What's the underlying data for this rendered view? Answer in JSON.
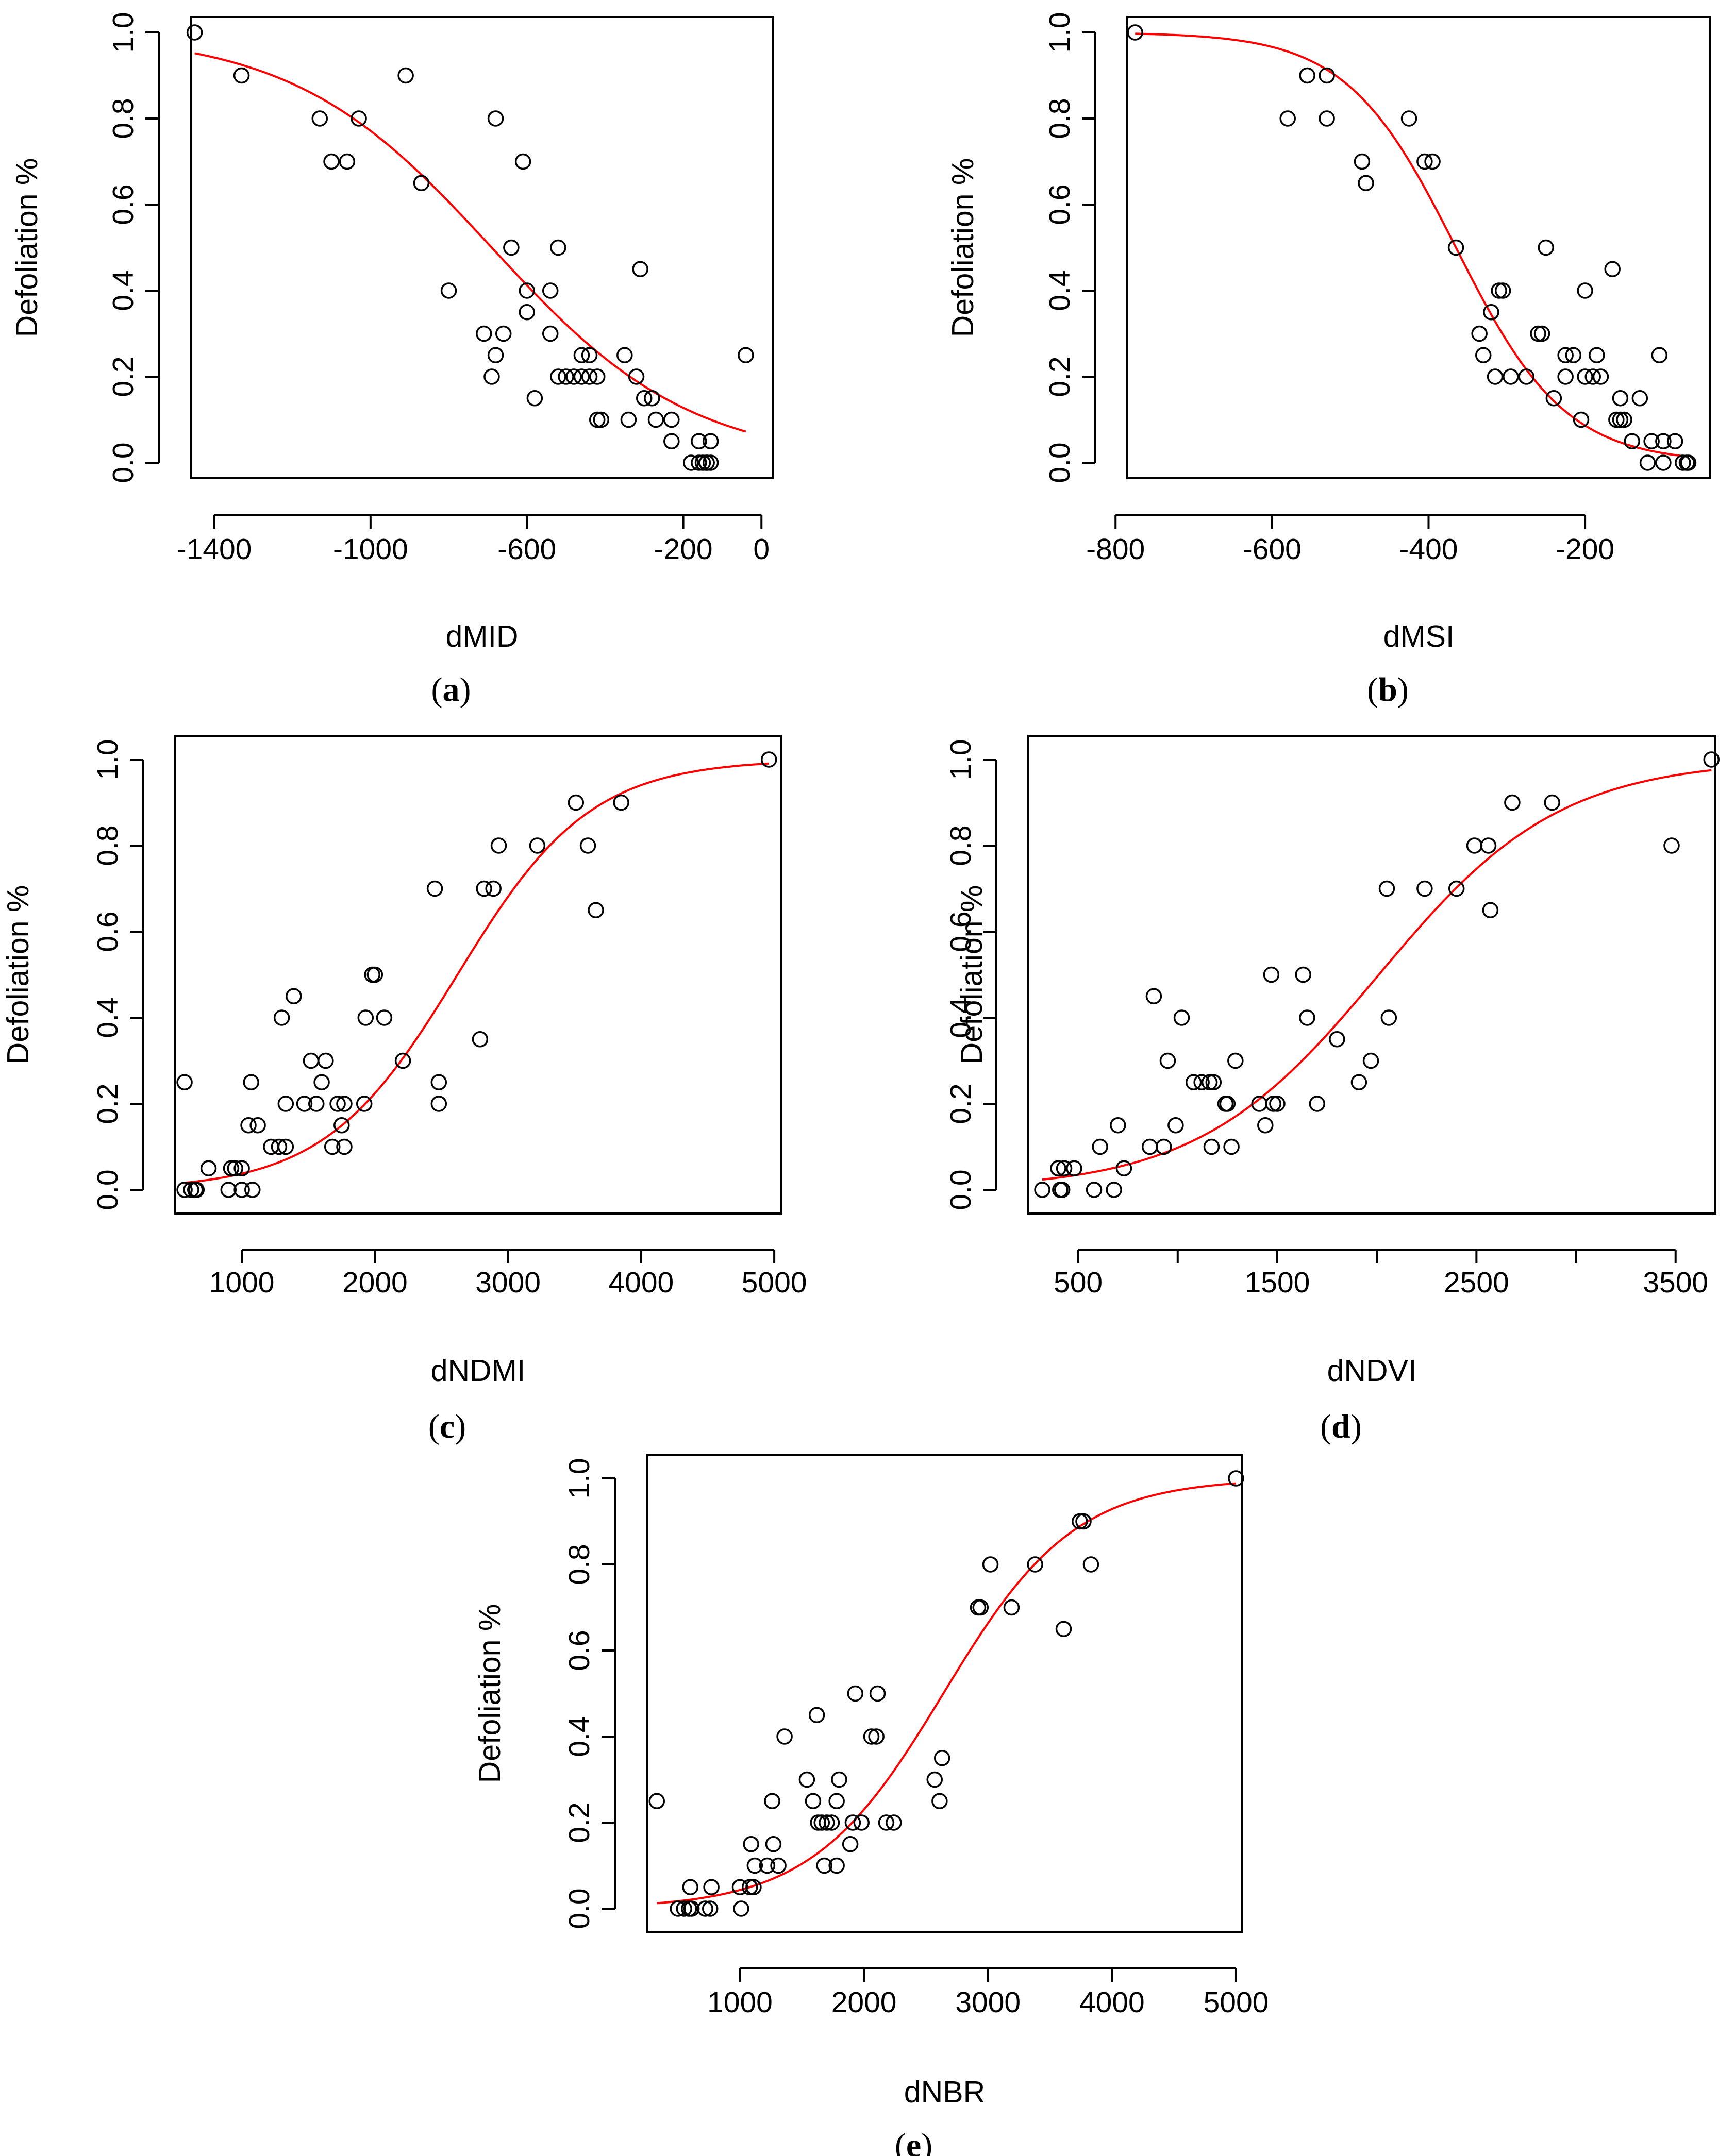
{
  "chart_data": [
    {
      "id": "a",
      "type": "scatter",
      "caption_letter": "a",
      "xlabel": "dMID",
      "ylabel": "Defoliation %",
      "xlim": [
        -1460,
        30
      ],
      "ylim": [
        0,
        1
      ],
      "xticks": [
        -1400,
        -1000,
        -600,
        -200,
        0
      ],
      "xtick_labels": [
        "-1400",
        "-1000",
        "-600",
        "-200",
        "0"
      ],
      "yticks": [
        0,
        0.2,
        0.4,
        0.6,
        0.8,
        1.0
      ],
      "ytick_labels": [
        "0.0",
        "0.2",
        "0.4",
        "0.6",
        "0.8",
        "1.0"
      ],
      "curve": {
        "type": "logistic",
        "x_mid": -690,
        "scale": 255,
        "color": "#ff0000"
      },
      "points": [
        [
          -1450,
          1.0
        ],
        [
          -1330,
          0.9
        ],
        [
          -1130,
          0.8
        ],
        [
          -1100,
          0.7
        ],
        [
          -1060,
          0.7
        ],
        [
          -1030,
          0.8
        ],
        [
          -910,
          0.9
        ],
        [
          -870,
          0.65
        ],
        [
          -800,
          0.4
        ],
        [
          -710,
          0.3
        ],
        [
          -690,
          0.2
        ],
        [
          -680,
          0.8
        ],
        [
          -680,
          0.25
        ],
        [
          -660,
          0.3
        ],
        [
          -640,
          0.5
        ],
        [
          -610,
          0.7
        ],
        [
          -600,
          0.4
        ],
        [
          -600,
          0.35
        ],
        [
          -580,
          0.15
        ],
        [
          -540,
          0.3
        ],
        [
          -540,
          0.4
        ],
        [
          -520,
          0.5
        ],
        [
          -520,
          0.2
        ],
        [
          -500,
          0.2
        ],
        [
          -480,
          0.2
        ],
        [
          -460,
          0.25
        ],
        [
          -460,
          0.2
        ],
        [
          -440,
          0.25
        ],
        [
          -440,
          0.2
        ],
        [
          -420,
          0.1
        ],
        [
          -420,
          0.2
        ],
        [
          -410,
          0.1
        ],
        [
          -340,
          0.1
        ],
        [
          -350,
          0.25
        ],
        [
          -320,
          0.2
        ],
        [
          -310,
          0.45
        ],
        [
          -300,
          0.15
        ],
        [
          -280,
          0.15
        ],
        [
          -270,
          0.1
        ],
        [
          -230,
          0.1
        ],
        [
          -230,
          0.05
        ],
        [
          -180,
          0
        ],
        [
          -160,
          0.05
        ],
        [
          -160,
          0
        ],
        [
          -150,
          0
        ],
        [
          -140,
          0
        ],
        [
          -130,
          0.05
        ],
        [
          -140,
          0
        ],
        [
          -130,
          0
        ],
        [
          -40,
          0.25
        ]
      ]
    },
    {
      "id": "b",
      "type": "scatter",
      "caption_letter": "b",
      "xlabel": "dMSI",
      "ylabel": "Defoliation %",
      "xlim": [
        -785,
        -40
      ],
      "ylim": [
        0,
        1
      ],
      "xticks": [
        -800,
        -600,
        -400,
        -200
      ],
      "xtick_labels": [
        "-800",
        "-600",
        "-400",
        "-200"
      ],
      "yticks": [
        0,
        0.2,
        0.4,
        0.6,
        0.8,
        1.0
      ],
      "ytick_labels": [
        "0.0",
        "0.2",
        "0.4",
        "0.6",
        "0.8",
        "1.0"
      ],
      "curve": {
        "type": "logistic",
        "x_mid": -365,
        "scale": 70,
        "color": "#ff0000"
      },
      "points": [
        [
          -775,
          1.0
        ],
        [
          -580,
          0.8
        ],
        [
          -555,
          0.9
        ],
        [
          -530,
          0.9
        ],
        [
          -530,
          0.8
        ],
        [
          -485,
          0.7
        ],
        [
          -480,
          0.65
        ],
        [
          -425,
          0.8
        ],
        [
          -405,
          0.7
        ],
        [
          -395,
          0.7
        ],
        [
          -365,
          0.5
        ],
        [
          -335,
          0.3
        ],
        [
          -330,
          0.25
        ],
        [
          -320,
          0.35
        ],
        [
          -315,
          0.2
        ],
        [
          -310,
          0.4
        ],
        [
          -305,
          0.4
        ],
        [
          -295,
          0.2
        ],
        [
          -275,
          0.2
        ],
        [
          -260,
          0.3
        ],
        [
          -255,
          0.3
        ],
        [
          -250,
          0.5
        ],
        [
          -240,
          0.15
        ],
        [
          -225,
          0.2
        ],
        [
          -225,
          0.25
        ],
        [
          -215,
          0.25
        ],
        [
          -205,
          0.1
        ],
        [
          -200,
          0.4
        ],
        [
          -200,
          0.2
        ],
        [
          -190,
          0.2
        ],
        [
          -185,
          0.25
        ],
        [
          -180,
          0.2
        ],
        [
          -165,
          0.45
        ],
        [
          -160,
          0.1
        ],
        [
          -155,
          0.15
        ],
        [
          -155,
          0.1
        ],
        [
          -150,
          0.1
        ],
        [
          -140,
          0.05
        ],
        [
          -130,
          0.15
        ],
        [
          -120,
          0
        ],
        [
          -115,
          0.05
        ],
        [
          -105,
          0.25
        ],
        [
          -100,
          0.05
        ],
        [
          -100,
          0
        ],
        [
          -85,
          0.05
        ],
        [
          -75,
          0
        ],
        [
          -70,
          0
        ],
        [
          -68,
          0
        ]
      ]
    },
    {
      "id": "c",
      "type": "scatter",
      "caption_letter": "c",
      "xlabel": "dNDMI",
      "ylabel": "Defoliation %",
      "xlim": [
        500,
        5050
      ],
      "ylim": [
        0,
        1
      ],
      "xticks": [
        1000,
        2000,
        3000,
        4000,
        5000
      ],
      "xtick_labels": [
        "1000",
        "2000",
        "3000",
        "4000",
        "5000"
      ],
      "yticks": [
        0,
        0.2,
        0.4,
        0.6,
        0.8,
        1.0
      ],
      "ytick_labels": [
        "0.0",
        "0.2",
        "0.4",
        "0.6",
        "0.8",
        "1.0"
      ],
      "curve": {
        "type": "logistic",
        "x_mid": 2620,
        "scale": 500,
        "color": "#ff0000"
      },
      "points": [
        [
          570,
          0.25
        ],
        [
          570,
          0
        ],
        [
          620,
          0
        ],
        [
          650,
          0
        ],
        [
          660,
          0
        ],
        [
          750,
          0.05
        ],
        [
          900,
          0
        ],
        [
          920,
          0.05
        ],
        [
          950,
          0.05
        ],
        [
          1000,
          0.05
        ],
        [
          1000,
          0
        ],
        [
          1050,
          0.15
        ],
        [
          1070,
          0.25
        ],
        [
          1080,
          0
        ],
        [
          1120,
          0.15
        ],
        [
          1220,
          0.1
        ],
        [
          1280,
          0.1
        ],
        [
          1300,
          0.4
        ],
        [
          1330,
          0.1
        ],
        [
          1330,
          0.2
        ],
        [
          1390,
          0.45
        ],
        [
          1470,
          0.2
        ],
        [
          1520,
          0.3
        ],
        [
          1560,
          0.2
        ],
        [
          1600,
          0.25
        ],
        [
          1630,
          0.3
        ],
        [
          1680,
          0.1
        ],
        [
          1720,
          0.2
        ],
        [
          1750,
          0.15
        ],
        [
          1770,
          0.2
        ],
        [
          1770,
          0.1
        ],
        [
          1920,
          0.2
        ],
        [
          1930,
          0.4
        ],
        [
          1980,
          0.5
        ],
        [
          2000,
          0.5
        ],
        [
          2070,
          0.4
        ],
        [
          2210,
          0.3
        ],
        [
          2450,
          0.7
        ],
        [
          2480,
          0.25
        ],
        [
          2480,
          0.2
        ],
        [
          2790,
          0.35
        ],
        [
          2820,
          0.7
        ],
        [
          2890,
          0.7
        ],
        [
          2930,
          0.8
        ],
        [
          3220,
          0.8
        ],
        [
          3510,
          0.9
        ],
        [
          3600,
          0.8
        ],
        [
          3660,
          0.65
        ],
        [
          3850,
          0.9
        ],
        [
          4960,
          1.0
        ]
      ]
    },
    {
      "id": "d",
      "type": "scatter",
      "caption_letter": "d",
      "xlabel": "dNDVI",
      "ylabel": "Defoliation %",
      "xlim": [
        250,
        3700
      ],
      "ylim": [
        0,
        1
      ],
      "xticks": [
        500,
        1500,
        2500,
        3500
      ],
      "xtick_labels": [
        "500",
        "1500",
        "2500",
        "3500"
      ],
      "minor_xticks": [
        1000,
        2000,
        3000
      ],
      "yticks": [
        0,
        0.2,
        0.4,
        0.6,
        0.8,
        1.0
      ],
      "ytick_labels": [
        "0.0",
        "0.2",
        "0.4",
        "0.6",
        "0.8",
        "1.0"
      ],
      "curve": {
        "type": "logistic",
        "x_mid": 2010,
        "scale": 455,
        "color": "#ff0000"
      },
      "points": [
        [
          320,
          0
        ],
        [
          400,
          0.05
        ],
        [
          410,
          0
        ],
        [
          420,
          0
        ],
        [
          430,
          0.05
        ],
        [
          480,
          0.05
        ],
        [
          580,
          0
        ],
        [
          610,
          0.1
        ],
        [
          680,
          0
        ],
        [
          700,
          0.15
        ],
        [
          730,
          0.05
        ],
        [
          860,
          0.1
        ],
        [
          880,
          0.45
        ],
        [
          930,
          0.1
        ],
        [
          950,
          0.3
        ],
        [
          990,
          0.15
        ],
        [
          1020,
          0.4
        ],
        [
          1080,
          0.25
        ],
        [
          1120,
          0.25
        ],
        [
          1160,
          0.25
        ],
        [
          1170,
          0.1
        ],
        [
          1180,
          0.25
        ],
        [
          1240,
          0.2
        ],
        [
          1250,
          0.2
        ],
        [
          1270,
          0.1
        ],
        [
          1290,
          0.3
        ],
        [
          1410,
          0.2
        ],
        [
          1440,
          0.15
        ],
        [
          1470,
          0.5
        ],
        [
          1480,
          0.2
        ],
        [
          1500,
          0.2
        ],
        [
          1630,
          0.5
        ],
        [
          1650,
          0.4
        ],
        [
          1700,
          0.2
        ],
        [
          1800,
          0.35
        ],
        [
          1910,
          0.25
        ],
        [
          1970,
          0.3
        ],
        [
          2050,
          0.7
        ],
        [
          2060,
          0.4
        ],
        [
          2240,
          0.7
        ],
        [
          2400,
          0.7
        ],
        [
          2490,
          0.8
        ],
        [
          2560,
          0.8
        ],
        [
          2570,
          0.65
        ],
        [
          2680,
          0.9
        ],
        [
          2880,
          0.9
        ],
        [
          3480,
          0.8
        ],
        [
          3680,
          1.0
        ]
      ]
    },
    {
      "id": "e",
      "type": "scatter",
      "caption_letter": "e",
      "xlabel": "dNBR",
      "ylabel": "Defoliation %",
      "xlim": [
        250,
        5050
      ],
      "ylim": [
        0,
        1
      ],
      "xticks": [
        1000,
        2000,
        3000,
        4000,
        5000
      ],
      "xtick_labels": [
        "1000",
        "2000",
        "3000",
        "4000",
        "5000"
      ],
      "yticks": [
        0,
        0.2,
        0.4,
        0.6,
        0.8,
        1.0
      ],
      "ytick_labels": [
        "0.0",
        "0.2",
        "0.4",
        "0.6",
        "0.8",
        "1.0"
      ],
      "curve": {
        "type": "logistic",
        "x_mid": 2640,
        "scale": 530,
        "color": "#ff0000"
      },
      "points": [
        [
          330,
          0.25
        ],
        [
          500,
          0
        ],
        [
          550,
          0
        ],
        [
          590,
          0
        ],
        [
          600,
          0.05
        ],
        [
          610,
          0
        ],
        [
          720,
          0
        ],
        [
          760,
          0
        ],
        [
          770,
          0.05
        ],
        [
          1000,
          0.05
        ],
        [
          1010,
          0
        ],
        [
          1080,
          0.05
        ],
        [
          1090,
          0.15
        ],
        [
          1110,
          0.05
        ],
        [
          1120,
          0.1
        ],
        [
          1220,
          0.1
        ],
        [
          1260,
          0.25
        ],
        [
          1270,
          0.15
        ],
        [
          1310,
          0.1
        ],
        [
          1360,
          0.4
        ],
        [
          1540,
          0.3
        ],
        [
          1590,
          0.25
        ],
        [
          1620,
          0.45
        ],
        [
          1630,
          0.2
        ],
        [
          1660,
          0.2
        ],
        [
          1680,
          0.1
        ],
        [
          1700,
          0.2
        ],
        [
          1740,
          0.2
        ],
        [
          1780,
          0.1
        ],
        [
          1780,
          0.25
        ],
        [
          1800,
          0.3
        ],
        [
          1890,
          0.15
        ],
        [
          1910,
          0.2
        ],
        [
          1930,
          0.5
        ],
        [
          1980,
          0.2
        ],
        [
          2060,
          0.4
        ],
        [
          2100,
          0.4
        ],
        [
          2110,
          0.5
        ],
        [
          2180,
          0.2
        ],
        [
          2240,
          0.2
        ],
        [
          2570,
          0.3
        ],
        [
          2610,
          0.25
        ],
        [
          2630,
          0.35
        ],
        [
          2920,
          0.7
        ],
        [
          2940,
          0.7
        ],
        [
          3020,
          0.8
        ],
        [
          3190,
          0.7
        ],
        [
          3380,
          0.8
        ],
        [
          3610,
          0.65
        ],
        [
          3740,
          0.9
        ],
        [
          3770,
          0.9
        ],
        [
          3830,
          0.8
        ],
        [
          5000,
          1.0
        ]
      ]
    }
  ]
}
